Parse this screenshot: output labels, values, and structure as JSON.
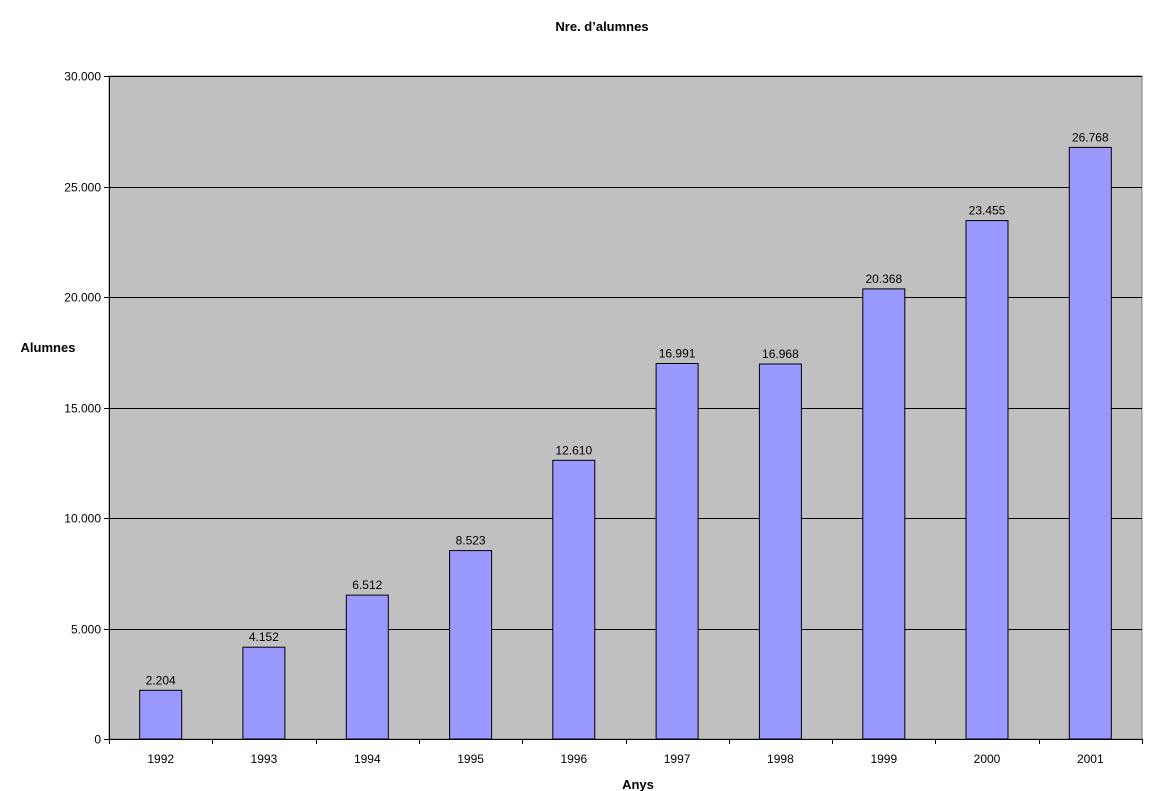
{
  "chart_data": {
    "type": "bar",
    "title": "Nre. d’alumnes",
    "xlabel": "Anys",
    "ylabel": "Alumnes",
    "categories": [
      "1992",
      "1993",
      "1994",
      "1995",
      "1996",
      "1997",
      "1998",
      "1999",
      "2000",
      "2001"
    ],
    "values": [
      2204,
      4152,
      6512,
      8523,
      12610,
      16991,
      16968,
      20368,
      23455,
      26768
    ],
    "data_labels": [
      "2.204",
      "4.152",
      "6.512",
      "8.523",
      "12.610",
      "16.991",
      "16.968",
      "20.368",
      "23.455",
      "26.768"
    ],
    "ylim": [
      0,
      30000
    ],
    "yticks": [
      0,
      5000,
      10000,
      15000,
      20000,
      25000,
      30000
    ],
    "ytick_labels": [
      "0",
      "5.000",
      "10.000",
      "15.000",
      "20.000",
      "25.000",
      "30.000"
    ],
    "grid": true,
    "legend": "none",
    "colors": {
      "plot_background": "#c0c0c0",
      "bar_fill": "#9999ff",
      "bar_stroke": "#000000",
      "gridline": "#000000"
    }
  }
}
